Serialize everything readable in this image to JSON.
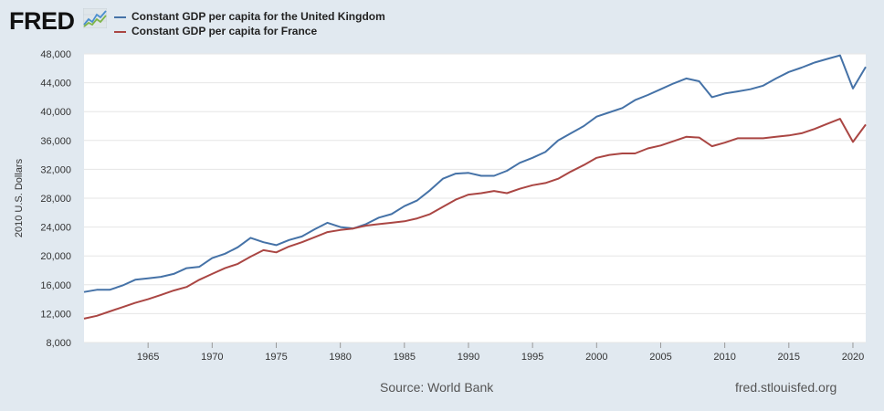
{
  "brand": {
    "logo_text": "FRED",
    "logo_icon": "fred-graph-icon"
  },
  "footer": {
    "source": "Source: World Bank",
    "site": "fred.stlouisfed.org"
  },
  "chart_data": {
    "type": "line",
    "title": "",
    "xlabel": "",
    "ylabel": "2010 U.S. Dollars",
    "xlim": [
      1960,
      2021
    ],
    "ylim": [
      8000,
      48000
    ],
    "yticks": [
      8000,
      12000,
      16000,
      20000,
      24000,
      28000,
      32000,
      36000,
      40000,
      44000,
      48000
    ],
    "ytick_labels": [
      "8,000",
      "12,000",
      "16,000",
      "20,000",
      "24,000",
      "28,000",
      "32,000",
      "36,000",
      "40,000",
      "44,000",
      "48,000"
    ],
    "xticks": [
      1965,
      1970,
      1975,
      1980,
      1985,
      1990,
      1995,
      2000,
      2005,
      2010,
      2015,
      2020
    ],
    "xtick_labels": [
      "1965",
      "1970",
      "1975",
      "1980",
      "1985",
      "1990",
      "1995",
      "2000",
      "2005",
      "2010",
      "2015",
      "2020"
    ],
    "grid": "horizontal",
    "legend": "top-left",
    "x": [
      1960,
      1961,
      1962,
      1963,
      1964,
      1965,
      1966,
      1967,
      1968,
      1969,
      1970,
      1971,
      1972,
      1973,
      1974,
      1975,
      1976,
      1977,
      1978,
      1979,
      1980,
      1981,
      1982,
      1983,
      1984,
      1985,
      1986,
      1987,
      1988,
      1989,
      1990,
      1991,
      1992,
      1993,
      1994,
      1995,
      1996,
      1997,
      1998,
      1999,
      2000,
      2001,
      2002,
      2003,
      2004,
      2005,
      2006,
      2007,
      2008,
      2009,
      2010,
      2011,
      2012,
      2013,
      2014,
      2015,
      2016,
      2017,
      2018,
      2019,
      2020,
      2021
    ],
    "series": [
      {
        "name": "Constant GDP per capita for the United Kingdom",
        "color": "#4572a7",
        "values": [
          15000,
          15300,
          15300,
          15900,
          16700,
          16900,
          17100,
          17500,
          18300,
          18500,
          19700,
          20300,
          21200,
          22500,
          21900,
          21500,
          22200,
          22700,
          23700,
          24600,
          24000,
          23800,
          24400,
          25300,
          25800,
          26900,
          27700,
          29100,
          30700,
          31400,
          31500,
          31100,
          31100,
          31800,
          32900,
          33600,
          34400,
          36000,
          37000,
          38000,
          39300,
          39900,
          40500,
          41600,
          42300,
          43100,
          43900,
          44600,
          44200,
          42000,
          42500,
          42800,
          43100,
          43600,
          44600,
          45500,
          46100,
          46800,
          47300,
          47800,
          43200,
          46200
        ]
      },
      {
        "name": "Constant GDP per capita for France",
        "color": "#aa4643",
        "values": [
          11300,
          11700,
          12300,
          12900,
          13500,
          14000,
          14600,
          15200,
          15700,
          16700,
          17500,
          18300,
          18900,
          19900,
          20800,
          20500,
          21300,
          21900,
          22600,
          23300,
          23600,
          23800,
          24200,
          24400,
          24600,
          24800,
          25200,
          25800,
          26800,
          27800,
          28500,
          28700,
          29000,
          28700,
          29300,
          29800,
          30100,
          30700,
          31700,
          32600,
          33600,
          34000,
          34200,
          34200,
          34900,
          35300,
          35900,
          36500,
          36400,
          35200,
          35700,
          36300,
          36300,
          36300,
          36500,
          36700,
          37000,
          37600,
          38300,
          39000,
          35800,
          38200
        ]
      }
    ]
  }
}
